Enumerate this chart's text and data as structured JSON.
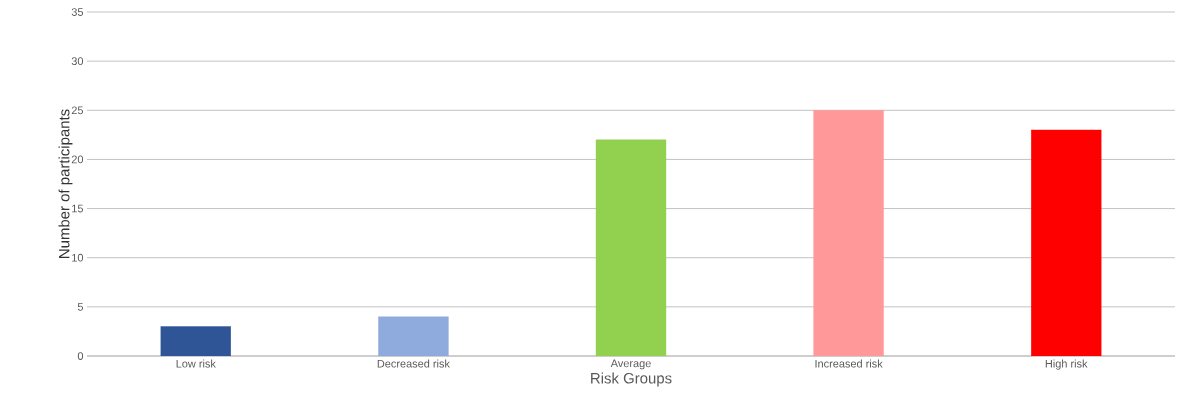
{
  "chart_data": {
    "type": "bar",
    "xlabel": "Risk Groups",
    "ylabel": "Number of participants",
    "categories": [
      "Low risk",
      "Decreased risk",
      "Average",
      "Increased risk",
      "High risk"
    ],
    "values": [
      3,
      4,
      22,
      25,
      23
    ],
    "colors": [
      "#2f5597",
      "#8faadc",
      "#92d050",
      "#ff9999",
      "#ff0000"
    ],
    "ylim": [
      0,
      35
    ],
    "yticks": [
      0,
      5,
      10,
      15,
      20,
      25,
      30,
      35
    ],
    "grid": "y"
  }
}
